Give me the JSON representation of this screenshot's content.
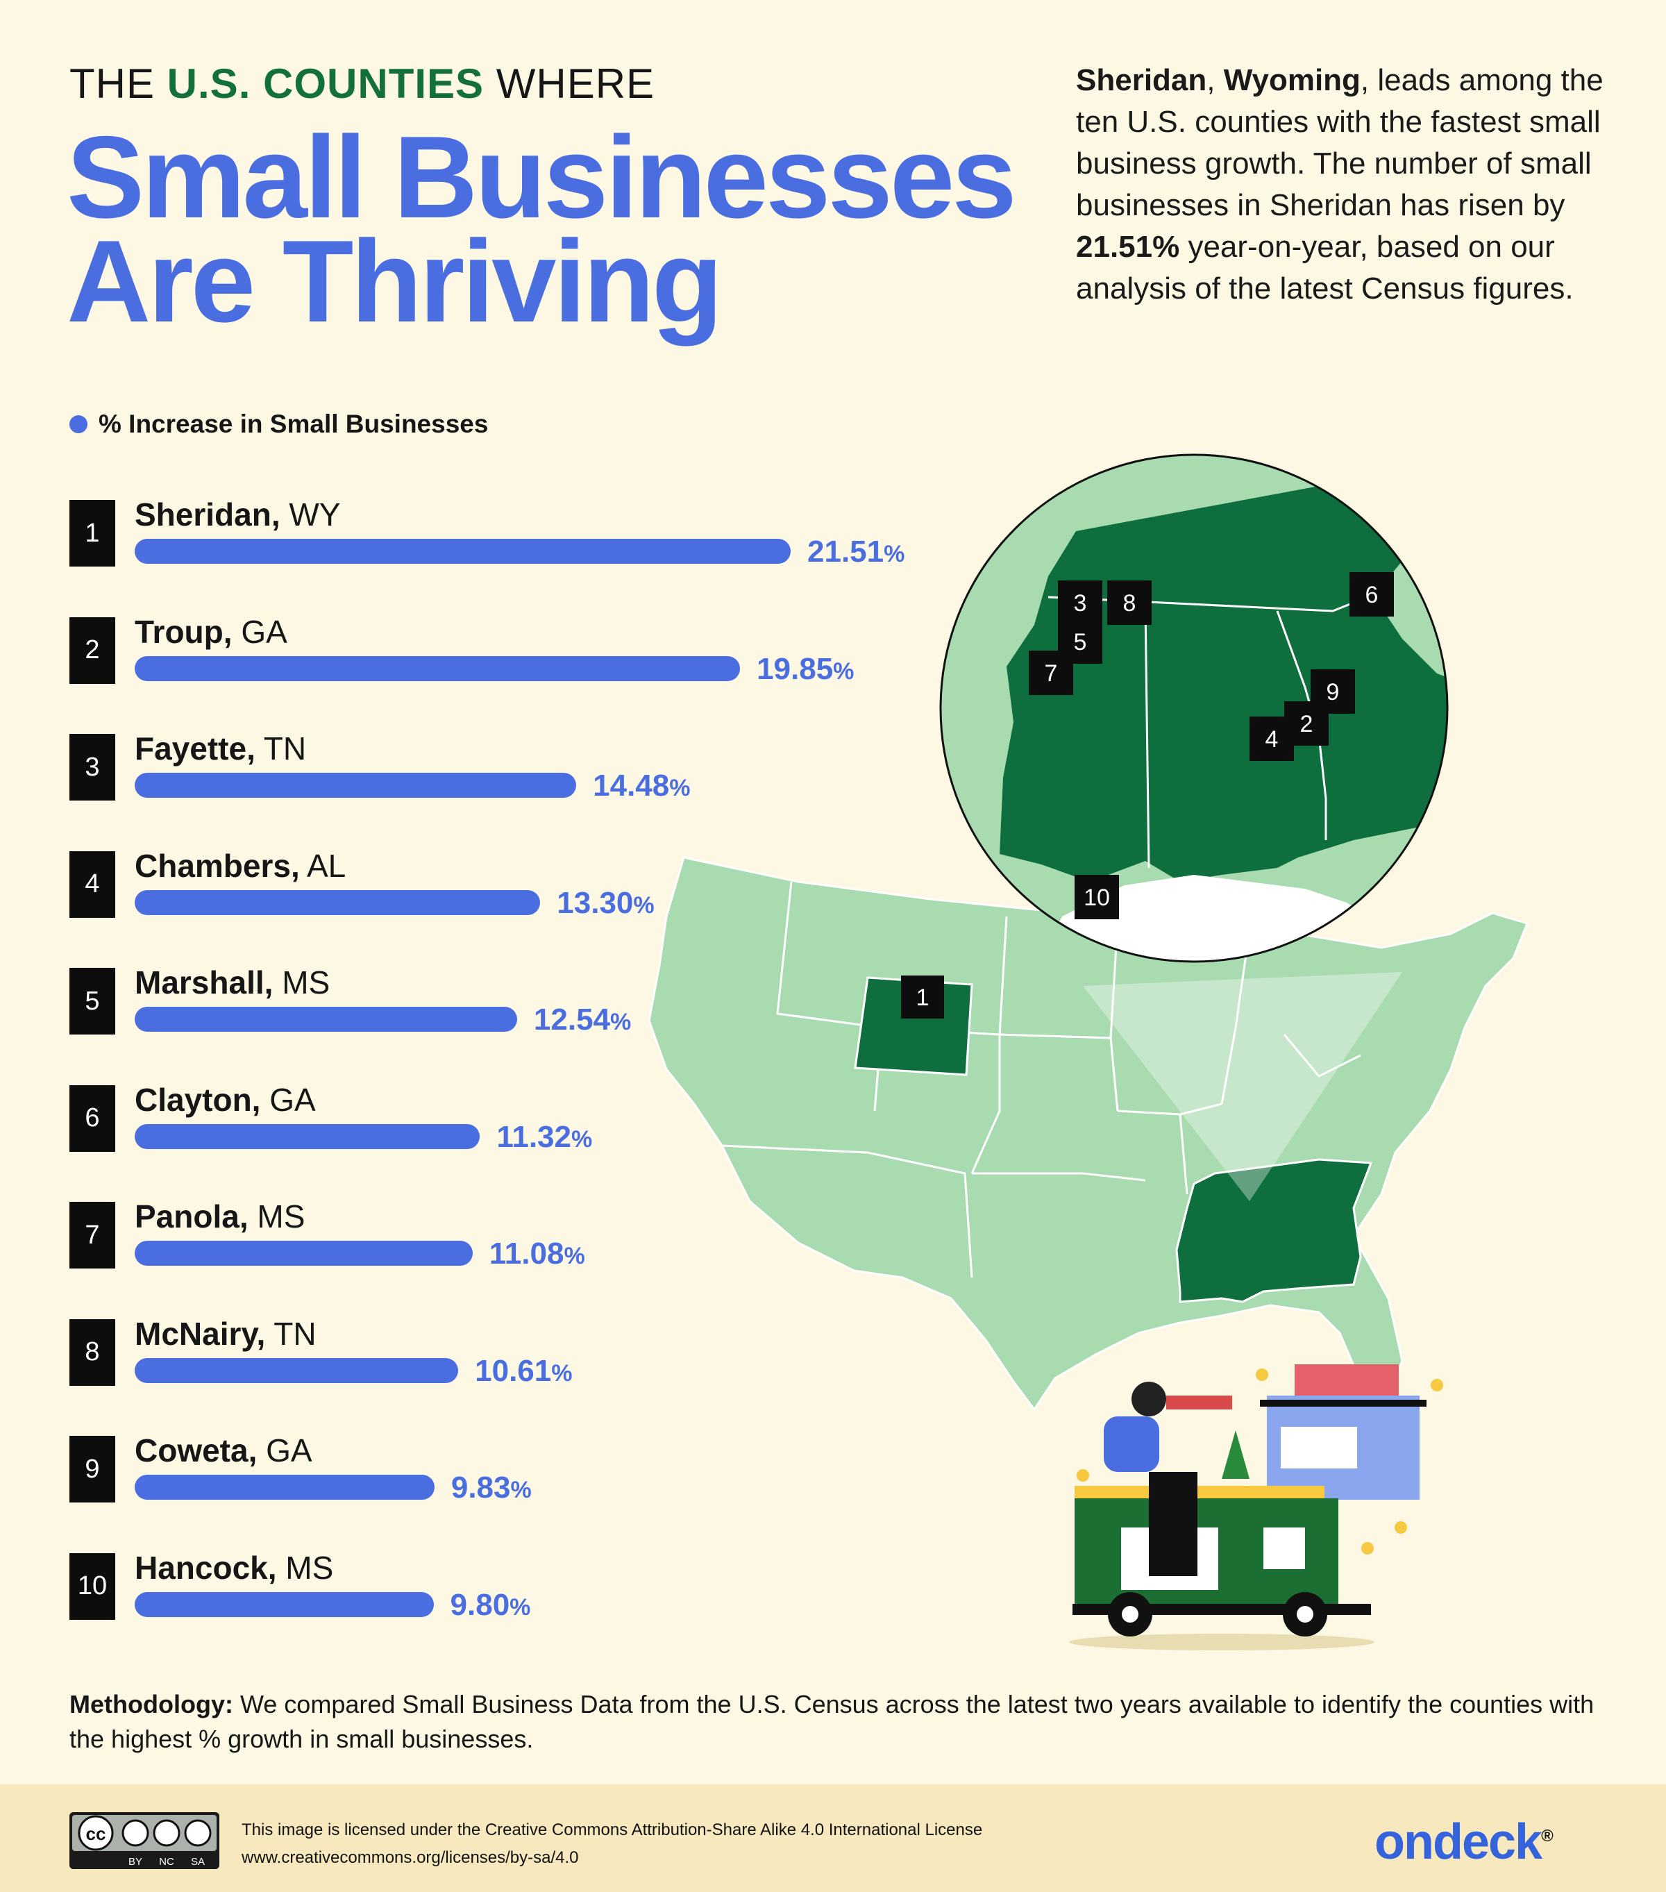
{
  "header": {
    "pre_title_1": "THE ",
    "pre_title_highlight": "U.S. COUNTIES",
    "pre_title_2": " WHERE",
    "title_line1": "Small Businesses",
    "title_line2": "Are Thriving"
  },
  "intro": {
    "p1": "Sheridan",
    "p2": ", ",
    "p3": "Wyoming",
    "p4": ", leads among the ten U.S. counties with the fastest small business growth. The number of small businesses in Sheridan has risen by ",
    "p5": "21.51%",
    "p6": " year-on-year, based on our analysis of the latest Census figures."
  },
  "legend": {
    "label": "% Increase in Small Businesses"
  },
  "colors": {
    "bar": "#4a6ee0",
    "map_light": "#a8dbb0",
    "map_dark": "#0f6e3d",
    "background": "#fdf8e4"
  },
  "chart_data": {
    "type": "bar",
    "orientation": "horizontal",
    "series": [
      {
        "name": "% Increase in Small Businesses",
        "values": [
          21.51,
          19.85,
          14.48,
          13.3,
          12.54,
          11.32,
          11.08,
          10.61,
          9.83,
          9.8
        ]
      }
    ],
    "rows": [
      {
        "rank": "1",
        "county": "Sheridan,",
        "state": " WY",
        "value": 21.51,
        "value_text": "21.51",
        "unit": "%"
      },
      {
        "rank": "2",
        "county": "Troup,",
        "state": " GA",
        "value": 19.85,
        "value_text": "19.85",
        "unit": "%"
      },
      {
        "rank": "3",
        "county": "Fayette,",
        "state": " TN",
        "value": 14.48,
        "value_text": "14.48",
        "unit": "%"
      },
      {
        "rank": "4",
        "county": "Chambers,",
        "state": " AL",
        "value": 13.3,
        "value_text": "13.30",
        "unit": "%"
      },
      {
        "rank": "5",
        "county": "Marshall,",
        "state": " MS",
        "value": 12.54,
        "value_text": "12.54",
        "unit": "%"
      },
      {
        "rank": "6",
        "county": "Clayton,",
        "state": " GA",
        "value": 11.32,
        "value_text": "11.32",
        "unit": "%"
      },
      {
        "rank": "7",
        "county": "Panola,",
        "state": " MS",
        "value": 11.08,
        "value_text": "11.08",
        "unit": "%"
      },
      {
        "rank": "8",
        "county": "McNairy,",
        "state": " TN",
        "value": 10.61,
        "value_text": "10.61",
        "unit": "%"
      },
      {
        "rank": "9",
        "county": "Coweta,",
        "state": " GA",
        "value": 9.83,
        "value_text": "9.83",
        "unit": "%"
      },
      {
        "rank": "10",
        "county": "Hancock,",
        "state": " MS",
        "value": 9.8,
        "value_text": "9.80",
        "unit": "%"
      }
    ],
    "xlim": [
      0,
      21.51
    ]
  },
  "map": {
    "us_marker": "1",
    "inset_markers": [
      "3",
      "8",
      "5",
      "7",
      "6",
      "9",
      "2",
      "4",
      "10"
    ]
  },
  "methodology": {
    "label": "Methodology:",
    "text": " We compared Small Business Data from the U.S. Census across the latest two years available to identify the counties with the highest % growth in small businesses."
  },
  "footer": {
    "license_line1": "This image is licensed under the Creative Commons Attribution-Share Alike 4.0 International License",
    "license_line2": "www.creativecommons.org/licenses/by-sa/4.0",
    "cc_labels": [
      "BY",
      "NC",
      "SA"
    ],
    "brand": "ondeck",
    "brand_mark": "®"
  }
}
